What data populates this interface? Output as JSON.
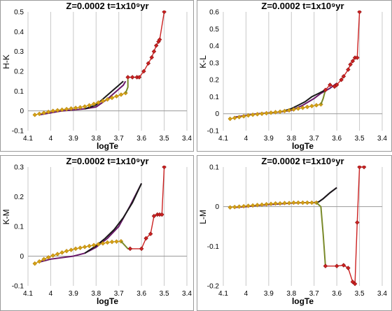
{
  "chart_data": [
    {
      "type": "line",
      "title": "Z=0.0002   t=1x10⁹yr",
      "xlabel": "logTe",
      "ylabel": "H-K",
      "xlim": [
        4.1,
        3.4
      ],
      "ylim": [
        -0.1,
        0.5
      ],
      "xticks": [
        "4.1",
        "4",
        "3.9",
        "3.8",
        "3.7",
        "3.6",
        "3.5",
        "3.4"
      ],
      "yticks": [
        "-0.1",
        "0",
        "0.1",
        "0.2",
        "0.3",
        "0.4",
        "0.5"
      ],
      "grid": "vertical",
      "series": [
        {
          "color": "#6a1a6a",
          "x": [
            4.05,
            4.0,
            3.95,
            3.9,
            3.85,
            3.8,
            3.75,
            3.7,
            3.68,
            3.67
          ],
          "y": [
            -0.02,
            -0.01,
            0.0,
            0.005,
            0.01,
            0.02,
            0.06,
            0.11,
            0.13,
            0.15
          ]
        },
        {
          "color": "#1a1a1a",
          "x": [
            3.85,
            3.8,
            3.77,
            3.74,
            3.71,
            3.68
          ],
          "y": [
            0.01,
            0.03,
            0.06,
            0.09,
            0.12,
            0.15
          ]
        },
        {
          "color": "#d4a017",
          "marker": "diamond",
          "x": [
            4.07,
            4.05,
            4.03,
            4.01,
            3.99,
            3.97,
            3.95,
            3.93,
            3.91,
            3.89,
            3.87,
            3.85,
            3.83,
            3.81,
            3.79,
            3.77,
            3.75,
            3.73,
            3.71,
            3.69,
            3.67
          ],
          "y": [
            -0.02,
            -0.015,
            -0.01,
            -0.005,
            0.0,
            0.003,
            0.006,
            0.009,
            0.012,
            0.015,
            0.018,
            0.022,
            0.028,
            0.035,
            0.042,
            0.05,
            0.058,
            0.066,
            0.074,
            0.082,
            0.09
          ]
        },
        {
          "color": "#7a8a2a",
          "x": [
            3.67,
            3.66,
            3.66
          ],
          "y": [
            0.09,
            0.12,
            0.16
          ]
        },
        {
          "color": "#cc2222",
          "marker": "diamond",
          "x": [
            3.66,
            3.64,
            3.62,
            3.61,
            3.59,
            3.57,
            3.555,
            3.545,
            3.535,
            3.525,
            3.52,
            3.5
          ],
          "y": [
            0.17,
            0.17,
            0.17,
            0.17,
            0.2,
            0.24,
            0.27,
            0.3,
            0.33,
            0.35,
            0.36,
            0.5
          ]
        }
      ]
    },
    {
      "type": "line",
      "title": "Z=0.0002   t=1x10⁹yr",
      "xlabel": "logTe",
      "ylabel": "K-L",
      "xlim": [
        4.1,
        3.4
      ],
      "ylim": [
        -0.1,
        0.6
      ],
      "xticks": [
        "4.1",
        "4",
        "3.9",
        "3.8",
        "3.7",
        "3.6",
        "3.5",
        "3.4"
      ],
      "yticks": [
        "-0.1",
        "0",
        "0.1",
        "0.2",
        "0.3",
        "0.4",
        "0.5",
        "0.6"
      ],
      "grid": "vertical",
      "series": [
        {
          "color": "#6a1a6a",
          "x": [
            4.05,
            4.0,
            3.95,
            3.9,
            3.85,
            3.8,
            3.75,
            3.7,
            3.67,
            3.63,
            3.6
          ],
          "y": [
            -0.02,
            -0.01,
            0.0,
            0.005,
            0.01,
            0.02,
            0.05,
            0.09,
            0.12,
            0.15,
            0.18
          ]
        },
        {
          "color": "#1a1a1a",
          "x": [
            3.85,
            3.8,
            3.77,
            3.74,
            3.71,
            3.68,
            3.65
          ],
          "y": [
            0.01,
            0.03,
            0.05,
            0.07,
            0.1,
            0.12,
            0.14
          ]
        },
        {
          "color": "#d4a017",
          "marker": "diamond",
          "x": [
            4.07,
            4.05,
            4.03,
            4.01,
            3.99,
            3.97,
            3.95,
            3.93,
            3.91,
            3.89,
            3.87,
            3.85,
            3.83,
            3.81,
            3.79,
            3.77,
            3.75,
            3.73,
            3.71,
            3.69,
            3.67
          ],
          "y": [
            -0.03,
            -0.025,
            -0.02,
            -0.015,
            -0.01,
            -0.006,
            -0.003,
            0.0,
            0.003,
            0.006,
            0.009,
            0.012,
            0.016,
            0.02,
            0.025,
            0.03,
            0.035,
            0.04,
            0.045,
            0.05,
            0.055
          ]
        },
        {
          "color": "#7a8a2a",
          "x": [
            3.67,
            3.66,
            3.65
          ],
          "y": [
            0.055,
            0.09,
            0.14
          ]
        },
        {
          "color": "#cc2222",
          "marker": "diamond",
          "x": [
            3.65,
            3.63,
            3.61,
            3.6,
            3.58,
            3.57,
            3.55,
            3.54,
            3.53,
            3.52,
            3.51,
            3.5
          ],
          "y": [
            0.14,
            0.17,
            0.16,
            0.17,
            0.2,
            0.22,
            0.26,
            0.29,
            0.31,
            0.33,
            0.33,
            0.6
          ]
        }
      ]
    },
    {
      "type": "line",
      "title": "Z=0.0002   t=1x10⁹yr",
      "xlabel": "logTe",
      "ylabel": "K-M",
      "xlim": [
        4.1,
        3.4
      ],
      "ylim": [
        -0.1,
        0.3
      ],
      "xticks": [
        "4.1",
        "4",
        "3.9",
        "3.8",
        "3.7",
        "3.6",
        "3.5",
        "3.4"
      ],
      "yticks": [
        "-0.1",
        "0",
        "0.1",
        "0.2",
        "0.3"
      ],
      "grid": "vertical",
      "series": [
        {
          "color": "#6a1a6a",
          "x": [
            4.05,
            4.0,
            3.95,
            3.9,
            3.85,
            3.8,
            3.75,
            3.7,
            3.65,
            3.6
          ],
          "y": [
            -0.02,
            -0.01,
            -0.005,
            0.0,
            0.01,
            0.03,
            0.06,
            0.1,
            0.17,
            0.245
          ]
        },
        {
          "color": "#1a1a1a",
          "x": [
            3.85,
            3.8,
            3.76,
            3.72,
            3.68,
            3.64,
            3.6
          ],
          "y": [
            0.01,
            0.035,
            0.06,
            0.09,
            0.13,
            0.18,
            0.245
          ]
        },
        {
          "color": "#d4a017",
          "marker": "diamond",
          "x": [
            4.07,
            4.05,
            4.03,
            4.01,
            3.99,
            3.97,
            3.95,
            3.93,
            3.91,
            3.89,
            3.87,
            3.85,
            3.83,
            3.81,
            3.79,
            3.77,
            3.75,
            3.73,
            3.71,
            3.69
          ],
          "y": [
            -0.025,
            -0.018,
            -0.01,
            -0.004,
            0.002,
            0.007,
            0.012,
            0.017,
            0.021,
            0.025,
            0.028,
            0.031,
            0.034,
            0.037,
            0.04,
            0.043,
            0.046,
            0.048,
            0.049,
            0.05
          ]
        },
        {
          "color": "#7a8a2a",
          "x": [
            3.69,
            3.66,
            3.65
          ],
          "y": [
            0.05,
            0.025,
            0.025
          ]
        },
        {
          "color": "#cc2222",
          "marker": "diamond",
          "x": [
            3.65,
            3.6,
            3.58,
            3.56,
            3.545,
            3.53,
            3.52,
            3.51,
            3.5
          ],
          "y": [
            0.025,
            0.025,
            0.06,
            0.075,
            0.135,
            0.14,
            0.14,
            0.14,
            0.3
          ]
        }
      ]
    },
    {
      "type": "line",
      "title": "Z=0.0002   t=1x10⁹yr",
      "xlabel": "logTe",
      "ylabel": "L-M",
      "xlim": [
        4.1,
        3.4
      ],
      "ylim": [
        -0.2,
        0.1
      ],
      "xticks": [
        "4.1",
        "4",
        "3.9",
        "3.8",
        "3.7",
        "3.6",
        "3.5",
        "3.4"
      ],
      "yticks": [
        "-0.2",
        "-0.1",
        "0",
        "0.1"
      ],
      "grid": "vertical",
      "series": [
        {
          "color": "#6a1a6a",
          "x": [
            4.05,
            4.0,
            3.95,
            3.9,
            3.85,
            3.8,
            3.75,
            3.7,
            3.68,
            3.66,
            3.63,
            3.6
          ],
          "y": [
            -0.002,
            0.0,
            0.003,
            0.005,
            0.007,
            0.009,
            0.01,
            0.01,
            0.012,
            0.02,
            0.035,
            0.048
          ]
        },
        {
          "color": "#1a1a1a",
          "x": [
            3.7,
            3.68,
            3.66,
            3.63,
            3.6
          ],
          "y": [
            0.01,
            0.012,
            0.02,
            0.035,
            0.048
          ]
        },
        {
          "color": "#d4a017",
          "marker": "diamond",
          "x": [
            4.07,
            4.05,
            4.03,
            4.01,
            3.99,
            3.97,
            3.95,
            3.93,
            3.91,
            3.89,
            3.87,
            3.85,
            3.83,
            3.81,
            3.79,
            3.77,
            3.75,
            3.73,
            3.71,
            3.69
          ],
          "y": [
            -0.002,
            -0.001,
            0.0,
            0.001,
            0.002,
            0.003,
            0.004,
            0.005,
            0.006,
            0.007,
            0.008,
            0.008,
            0.009,
            0.009,
            0.01,
            0.01,
            0.01,
            0.01,
            0.01,
            0.01
          ]
        },
        {
          "color": "#7a8a2a",
          "x": [
            3.69,
            3.67,
            3.66,
            3.65
          ],
          "y": [
            0.01,
            0.0,
            -0.07,
            -0.15
          ]
        },
        {
          "color": "#cc2222",
          "marker": "diamond",
          "x": [
            3.65,
            3.6,
            3.57,
            3.55,
            3.53,
            3.52,
            3.51,
            3.5,
            3.48
          ],
          "y": [
            -0.15,
            -0.15,
            -0.148,
            -0.155,
            -0.19,
            -0.195,
            -0.04,
            0.1,
            0.1
          ]
        }
      ]
    }
  ]
}
